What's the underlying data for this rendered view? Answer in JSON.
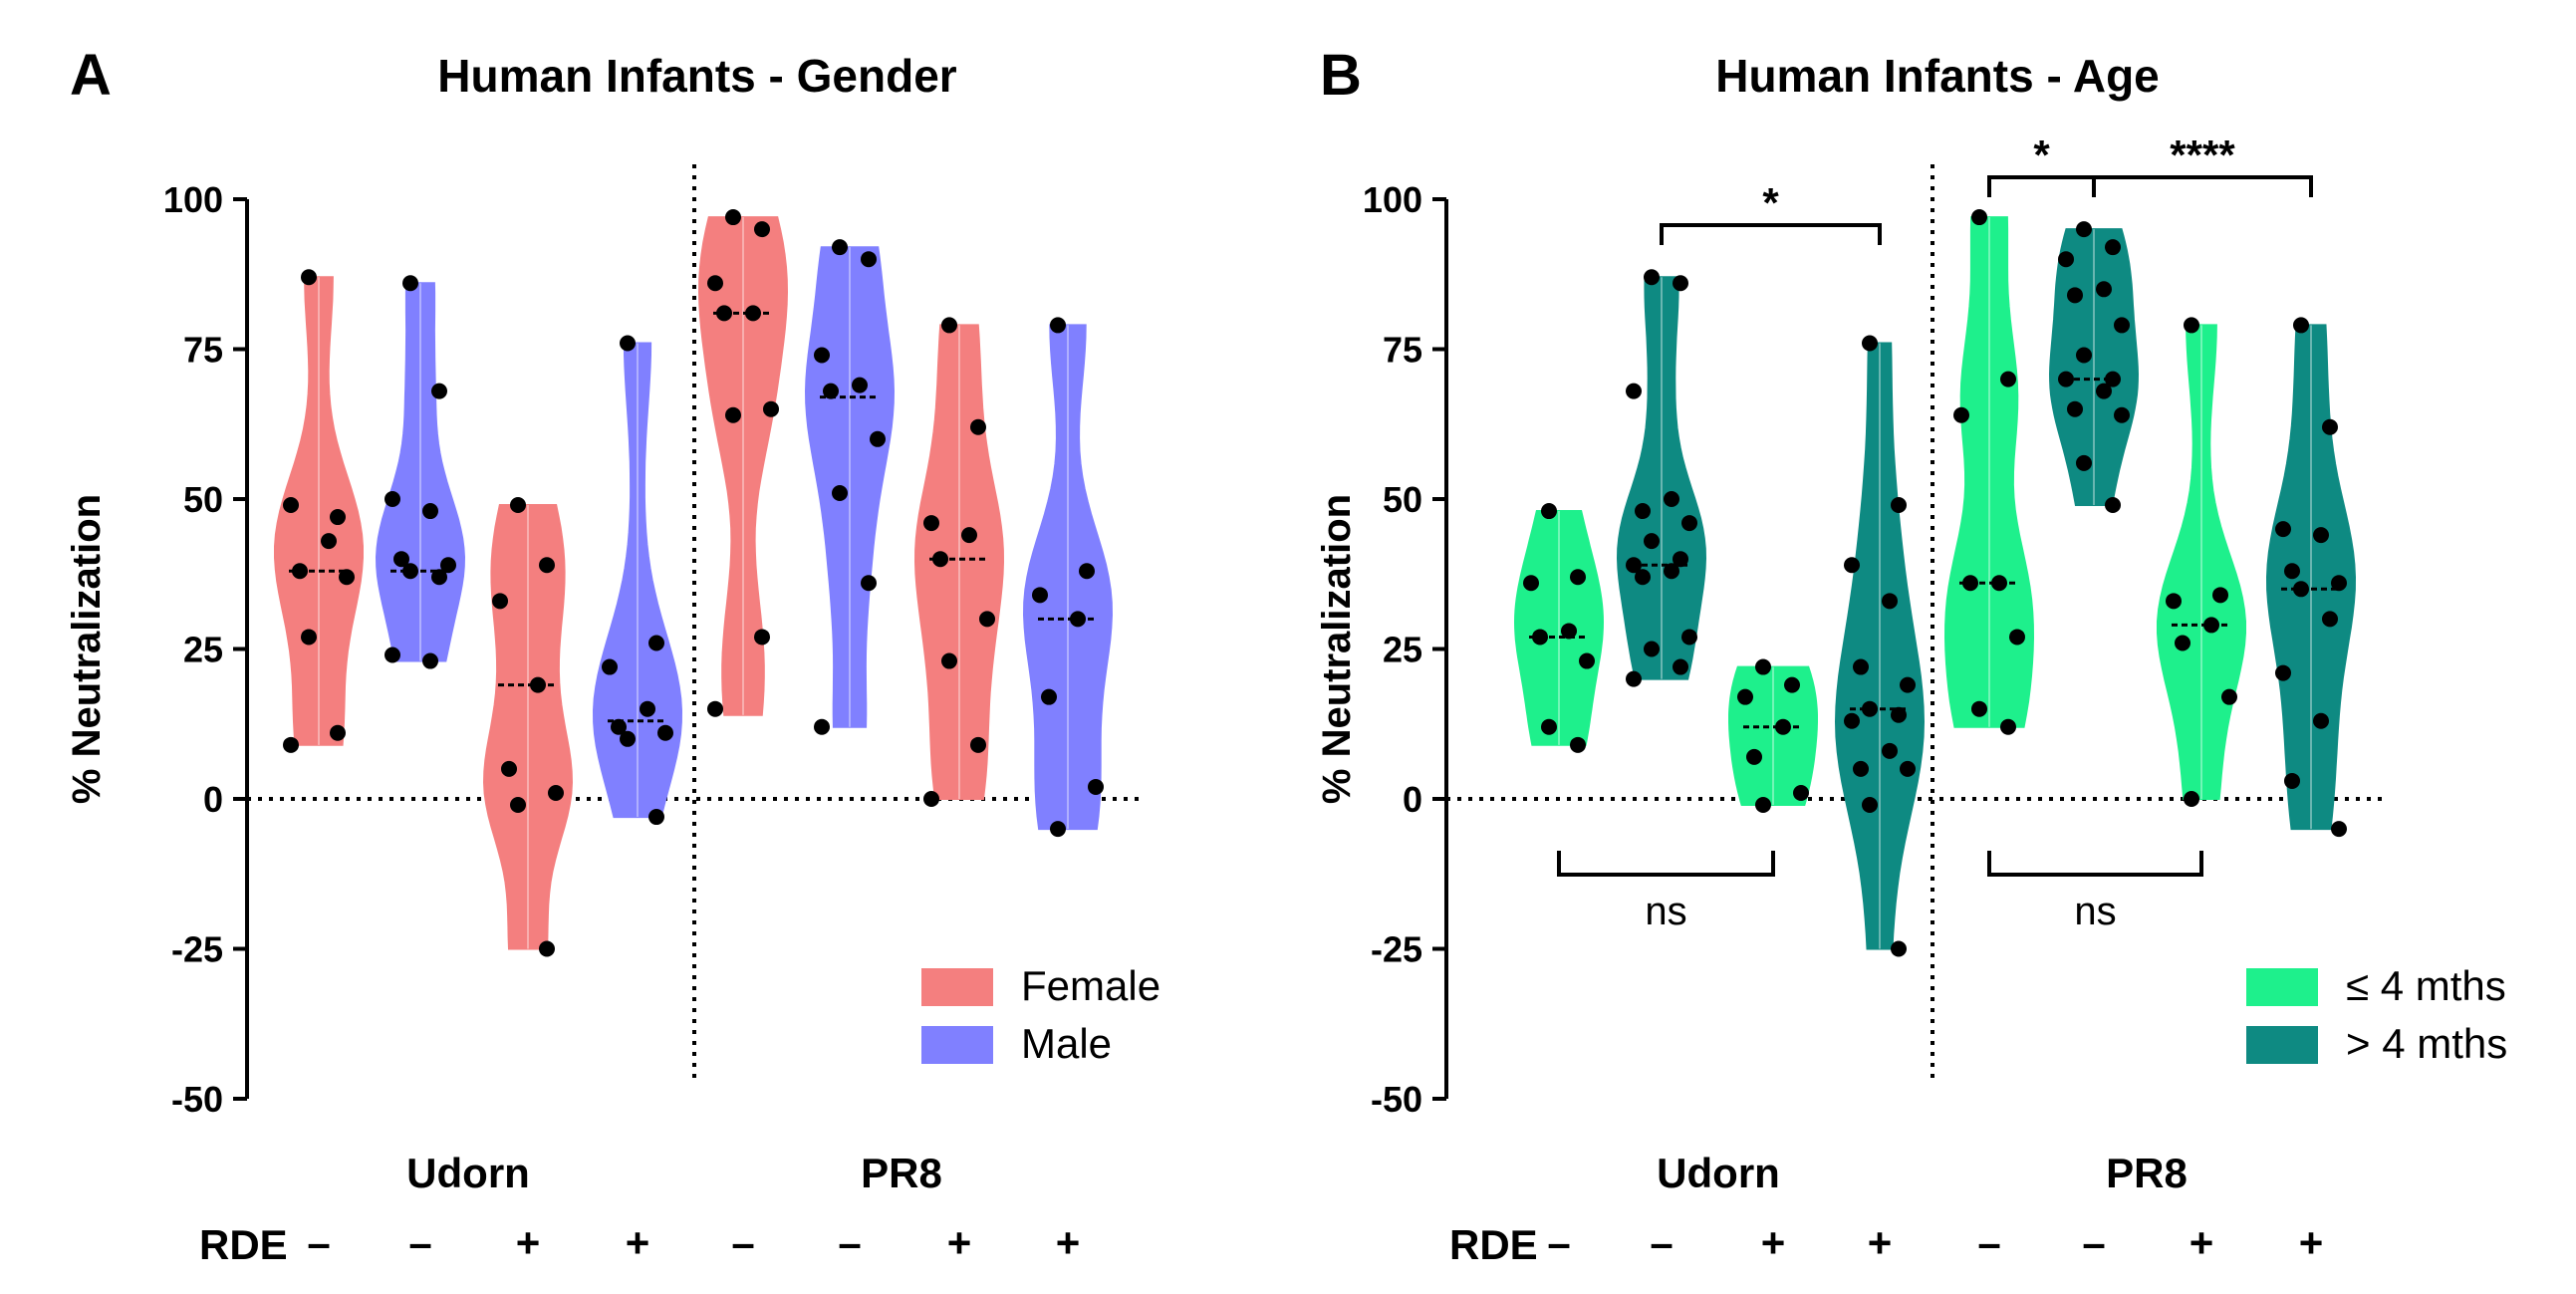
{
  "chart_data": [
    {
      "panel_label": "A",
      "type": "violin",
      "title": "Human Infants - Gender",
      "ylabel": "% Neutralization",
      "ylim": [
        -50,
        100
      ],
      "yticks": [
        100,
        75,
        50,
        25,
        0,
        -25,
        -50
      ],
      "ytick_labels": [
        "100",
        "75",
        "50",
        "25",
        "0",
        "-25",
        "-50"
      ],
      "groups": [
        "Udorn",
        "PR8"
      ],
      "rde_label": "RDE",
      "rde_signs": [
        "–",
        "–",
        "+",
        "+",
        "–",
        "–",
        "+",
        "+"
      ],
      "legend": [
        {
          "label": "Female",
          "color": "#f47f7f"
        },
        {
          "label": "Male",
          "color": "#8080ff"
        }
      ],
      "violins": [
        {
          "series": "Female",
          "color": "#f47f7f",
          "min": 9,
          "max": 87,
          "median": 38,
          "points": [
            87,
            47,
            49,
            43,
            38,
            37,
            27,
            11,
            9
          ]
        },
        {
          "series": "Male",
          "color": "#8080ff",
          "min": 23,
          "max": 86,
          "median": 38,
          "points": [
            86,
            68,
            50,
            48,
            40,
            39,
            38,
            37,
            24,
            23
          ]
        },
        {
          "series": "Female",
          "color": "#f47f7f",
          "min": -25,
          "max": 49,
          "median": 19,
          "points": [
            49,
            39,
            33,
            19,
            5,
            1,
            -1,
            -25
          ]
        },
        {
          "series": "Male",
          "color": "#8080ff",
          "min": -3,
          "max": 76,
          "median": 13,
          "points": [
            76,
            26,
            22,
            15,
            12,
            11,
            10,
            -3
          ]
        },
        {
          "series": "Female",
          "color": "#f47f7f",
          "min": 14,
          "max": 97,
          "median": 81,
          "points": [
            97,
            95,
            86,
            81,
            81,
            65,
            64,
            27,
            15
          ]
        },
        {
          "series": "Male",
          "color": "#8080ff",
          "min": 12,
          "max": 92,
          "median": 67,
          "points": [
            92,
            90,
            74,
            69,
            68,
            60,
            51,
            36,
            12
          ]
        },
        {
          "series": "Female",
          "color": "#f47f7f",
          "min": 0,
          "max": 79,
          "median": 40,
          "points": [
            79,
            62,
            46,
            44,
            40,
            30,
            23,
            9,
            0
          ]
        },
        {
          "series": "Male",
          "color": "#8080ff",
          "min": -5,
          "max": 79,
          "median": 30,
          "points": [
            79,
            38,
            34,
            30,
            17,
            2,
            -5
          ]
        }
      ],
      "annotations": []
    },
    {
      "panel_label": "B",
      "type": "violin",
      "title": "Human Infants - Age",
      "ylabel": "% Neutralization",
      "ylim": [
        -50,
        100
      ],
      "yticks": [
        100,
        75,
        50,
        25,
        0,
        -25,
        -50
      ],
      "ytick_labels": [
        "100",
        "75",
        "50",
        "25",
        "0",
        "-25",
        "-50"
      ],
      "groups": [
        "Udorn",
        "PR8"
      ],
      "rde_label": "RDE",
      "rde_signs": [
        "–",
        "–",
        "+",
        "+",
        "–",
        "–",
        "+",
        "+"
      ],
      "legend": [
        {
          "label": "≤ 4 mths",
          "color": "#1ef08c"
        },
        {
          "label": "> 4 mths",
          "color": "#0e8a82"
        }
      ],
      "violins": [
        {
          "series": "≤ 4 mths",
          "color": "#1ef08c",
          "min": 9,
          "max": 48,
          "median": 27,
          "points": [
            48,
            37,
            36,
            28,
            27,
            23,
            12,
            9
          ]
        },
        {
          "series": "> 4 mths",
          "color": "#0e8a82",
          "min": 20,
          "max": 87,
          "median": 39,
          "points": [
            87,
            86,
            68,
            50,
            48,
            46,
            43,
            40,
            39,
            38,
            37,
            27,
            25,
            22,
            20
          ]
        },
        {
          "series": "≤ 4 mths",
          "color": "#1ef08c",
          "min": -1,
          "max": 22,
          "median": 12,
          "points": [
            22,
            19,
            17,
            12,
            7,
            1,
            -1
          ]
        },
        {
          "series": "> 4 mths",
          "color": "#0e8a82",
          "min": -25,
          "max": 76,
          "median": 15,
          "points": [
            76,
            49,
            39,
            33,
            22,
            19,
            15,
            14,
            13,
            8,
            5,
            5,
            -1,
            -25
          ]
        },
        {
          "series": "≤ 4 mths",
          "color": "#1ef08c",
          "min": 12,
          "max": 97,
          "median": 36,
          "points": [
            97,
            70,
            64,
            36,
            36,
            27,
            15,
            12
          ]
        },
        {
          "series": "> 4 mths",
          "color": "#0e8a82",
          "min": 49,
          "max": 95,
          "median": 70,
          "points": [
            95,
            92,
            90,
            85,
            84,
            79,
            74,
            70,
            70,
            68,
            65,
            64,
            56,
            49
          ]
        },
        {
          "series": "≤ 4 mths",
          "color": "#1ef08c",
          "min": 0,
          "max": 79,
          "median": 29,
          "points": [
            79,
            34,
            33,
            29,
            26,
            17,
            0
          ]
        },
        {
          "series": "> 4 mths",
          "color": "#0e8a82",
          "min": -5,
          "max": 79,
          "median": 35,
          "points": [
            79,
            62,
            45,
            44,
            38,
            36,
            35,
            30,
            21,
            13,
            3,
            -5
          ]
        }
      ],
      "annotations": [
        {
          "from": 1,
          "to": 3,
          "label": "*",
          "position": "top"
        },
        {
          "from": 4,
          "to": 5,
          "label": "*",
          "position": "top"
        },
        {
          "from": 5,
          "to": 7,
          "label": "****",
          "position": "top"
        },
        {
          "from": 0,
          "to": 2,
          "label": "ns",
          "position": "bottom"
        },
        {
          "from": 4,
          "to": 6,
          "label": "ns",
          "position": "bottom"
        }
      ]
    }
  ]
}
